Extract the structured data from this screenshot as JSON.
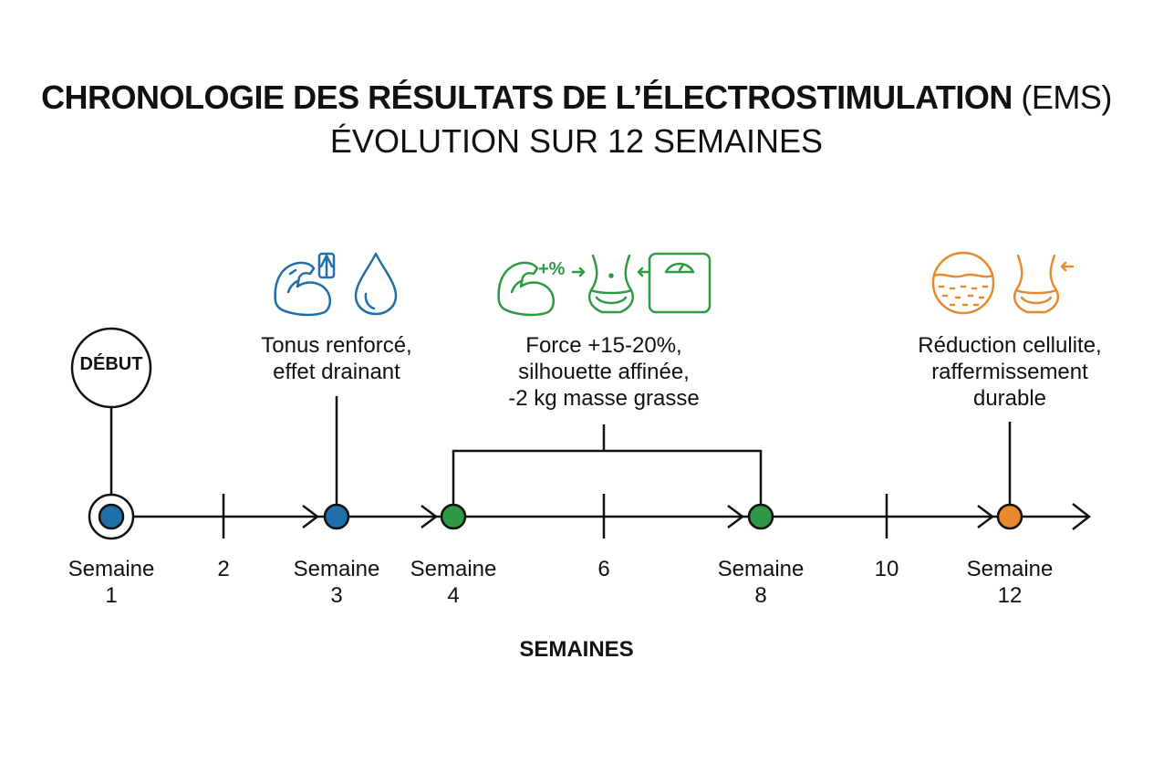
{
  "title": {
    "main_bold": "CHRONOLOGIE DES RÉSULTATS DE L’ÉLECTROSTIMULATION",
    "main_paren": "(EMS)",
    "subtitle": "ÉVOLUTION SUR 12 SEMAINES"
  },
  "start_label": "DÉBUT",
  "axis_title": "SEMAINES",
  "ticks": [
    {
      "line1": "Semaine",
      "line2": "1"
    },
    {
      "line1": "2",
      "line2": ""
    },
    {
      "line1": "Semaine",
      "line2": "3"
    },
    {
      "line1": "Semaine",
      "line2": "4"
    },
    {
      "line1": "6",
      "line2": ""
    },
    {
      "line1": "Semaine",
      "line2": "8"
    },
    {
      "line1": "10",
      "line2": ""
    },
    {
      "line1": "Semaine",
      "line2": "12"
    }
  ],
  "milestones": [
    {
      "lines": [
        "Tonus renforcé,",
        "effet drainant"
      ],
      "icons": [
        "flexed-arm-up-arrow-icon",
        "water-drop-icon"
      ]
    },
    {
      "lines": [
        "Force +15-20%,",
        "silhouette affinée,",
        "-2 kg masse grasse"
      ],
      "icons": [
        "flexed-arm-plus-percent-icon",
        "waist-slimming-icon",
        "scale-icon"
      ],
      "icon_text": "+%"
    },
    {
      "lines": [
        "Réduction cellulite,",
        "raffermissement",
        "durable"
      ],
      "icons": [
        "skin-layer-icon",
        "waist-slimming-icon"
      ]
    }
  ],
  "colors": {
    "blue": "#1f6fa8",
    "green": "#2e9a45",
    "orange": "#e8892e",
    "line": "#111111"
  }
}
